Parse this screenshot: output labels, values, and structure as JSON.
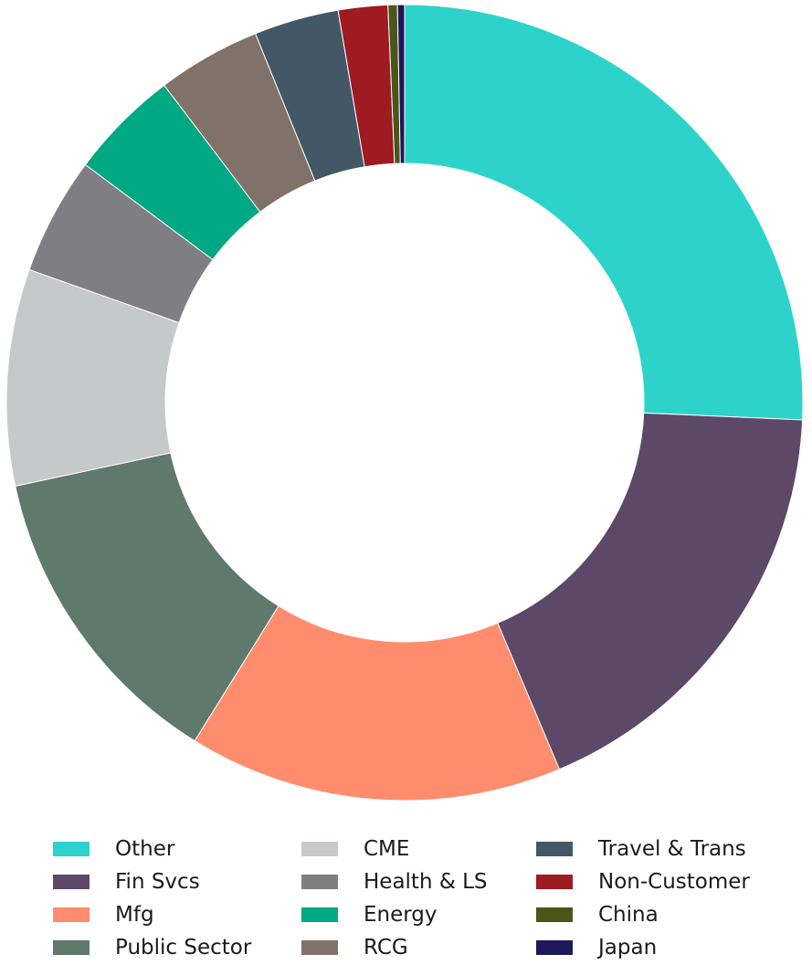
{
  "chart_data": {
    "type": "pie",
    "variant": "donut",
    "title": "",
    "legend_position": "bottom",
    "legend_columns": 3,
    "slices": [
      {
        "label": "Other",
        "value": 26.9,
        "color": "#2dd3cb"
      },
      {
        "label": "Fin Svcs",
        "value": 18.8,
        "color": "#5d4868"
      },
      {
        "label": "Mfg",
        "value": 15.9,
        "color": "#ff8c6d"
      },
      {
        "label": "Public Sector",
        "value": 13.4,
        "color": "#5f796c"
      },
      {
        "label": "CME",
        "value": 9.2,
        "color": "#c6c9c9"
      },
      {
        "label": "Health & LS",
        "value": 5.0,
        "color": "#7f7f83"
      },
      {
        "label": "Energy",
        "value": 4.7,
        "color": "#00a883"
      },
      {
        "label": "RCG",
        "value": 4.4,
        "color": "#807269"
      },
      {
        "label": "Travel & Trans",
        "value": 3.6,
        "color": "#445766"
      },
      {
        "label": "Non-Customer",
        "value": 2.1,
        "color": "#9e1b21"
      },
      {
        "label": "China",
        "value": 0.4,
        "color": "#4a5519"
      },
      {
        "label": "Japan",
        "value": 0.3,
        "color": "#1c185a"
      }
    ]
  }
}
